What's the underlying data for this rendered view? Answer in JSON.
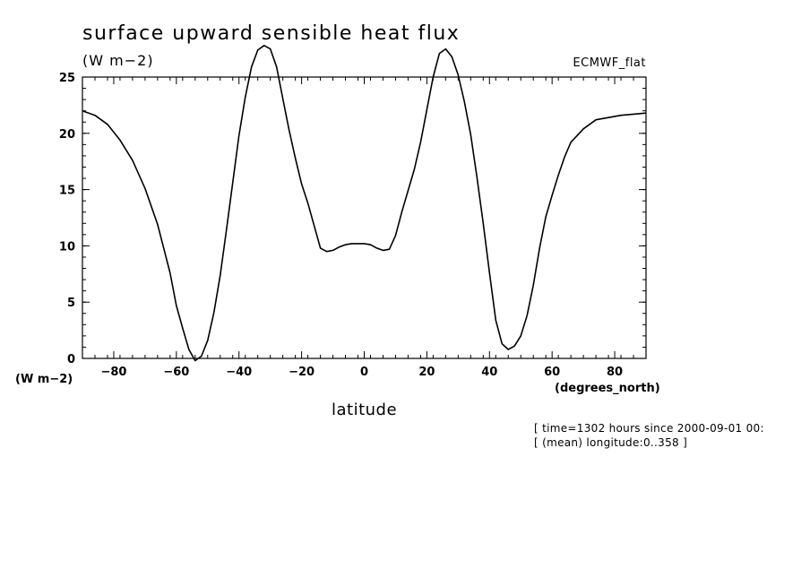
{
  "title": "surface upward sensible heat flux",
  "units_label": "(W m−2)",
  "dataset_label": "ECMWF_flat",
  "y_units_label": "(W m−2)",
  "x_units_label": "(degrees_north)",
  "xlabel": "latitude",
  "meta_lines": [
    "[ time=1302 hours since 2000-09-01 00:",
    "[ (mean) longitude:0..358 ]"
  ],
  "chart_data": {
    "type": "line",
    "title": "surface upward sensible heat flux",
    "xlabel": "latitude",
    "ylabel": "(W m−2)",
    "xlim": [
      -90,
      90
    ],
    "ylim": [
      0,
      25
    ],
    "xticks": [
      -80,
      -60,
      -40,
      -20,
      0,
      20,
      40,
      60,
      80
    ],
    "xtick_labels": [
      "−80",
      "−60",
      "−40",
      "−20",
      "0",
      "20",
      "40",
      "60",
      "80"
    ],
    "yticks": [
      0,
      5,
      10,
      15,
      20,
      25
    ],
    "ytick_labels": [
      "0",
      "5",
      "10",
      "15",
      "20",
      "25"
    ],
    "grid": false,
    "series": [
      {
        "x": [
          -90,
          -86,
          -82,
          -78,
          -74,
          -70,
          -66,
          -62,
          -60,
          -58,
          -56,
          -54,
          -52,
          -50,
          -48,
          -46,
          -44,
          -42,
          -40,
          -38,
          -36,
          -34,
          -32,
          -30,
          -28,
          -26,
          -24,
          -22,
          -20,
          -18,
          -16,
          -14,
          -12,
          -10,
          -8,
          -6,
          -4,
          -2,
          0,
          2,
          4,
          6,
          8,
          10,
          12,
          14,
          16,
          18,
          20,
          22,
          24,
          26,
          28,
          30,
          32,
          34,
          36,
          38,
          40,
          42,
          44,
          46,
          48,
          50,
          52,
          54,
          56,
          58,
          60,
          62,
          64,
          66,
          70,
          74,
          78,
          82,
          86,
          90
        ],
        "y": [
          22.0,
          21.6,
          20.8,
          19.4,
          17.6,
          15.1,
          11.9,
          7.6,
          4.7,
          2.7,
          0.8,
          -0.2,
          0.2,
          1.6,
          4.1,
          7.4,
          11.4,
          15.6,
          19.8,
          23.2,
          25.9,
          27.4,
          27.8,
          27.5,
          25.9,
          23.1,
          20.3,
          17.8,
          15.5,
          13.8,
          11.8,
          9.8,
          9.5,
          9.6,
          9.9,
          10.1,
          10.2,
          10.2,
          10.2,
          10.1,
          9.8,
          9.6,
          9.7,
          10.9,
          13.0,
          14.9,
          16.8,
          19.2,
          22.1,
          25.0,
          27.1,
          27.5,
          26.8,
          25.2,
          22.8,
          19.9,
          16.1,
          12.0,
          7.6,
          3.4,
          1.3,
          0.8,
          1.1,
          2.0,
          3.8,
          6.5,
          9.8,
          12.6,
          14.5,
          16.3,
          17.9,
          19.2,
          20.4,
          21.2,
          21.4,
          21.6,
          21.7,
          21.8
        ]
      }
    ]
  }
}
